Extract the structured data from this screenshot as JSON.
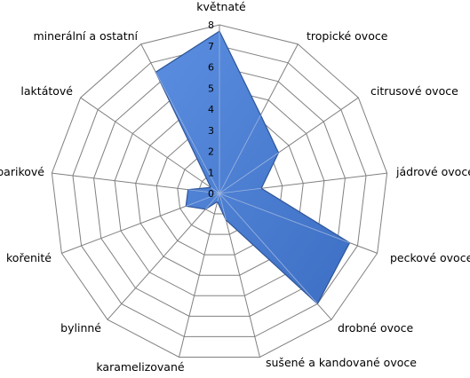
{
  "chart_data": {
    "type": "radar",
    "categories": [
      "květnaté",
      "tropické ovoce",
      "citrusové ovoce",
      "jádrové ovoce",
      "peckové ovoce",
      "drobné ovoce",
      "sušené a kandované ovoce",
      "karamelizované",
      "bylinné",
      "kořenité",
      "barikové",
      "laktátové",
      "minerální a ostatní"
    ],
    "series": [
      {
        "values": [
          7.7,
          4.2,
          3.4,
          2.0,
          6.6,
          7.0,
          1.3,
          0.4,
          1.0,
          1.7,
          1.5,
          0.5,
          6.5
        ]
      }
    ],
    "ticks": [
      0,
      1,
      2,
      3,
      4,
      5,
      6,
      7,
      8
    ],
    "rlim": [
      0,
      8
    ],
    "grid": true,
    "legend": "none",
    "colors": {
      "series_fill": "#4a7fd4",
      "series_stroke": "#2f5597",
      "grid": "#808080"
    }
  }
}
